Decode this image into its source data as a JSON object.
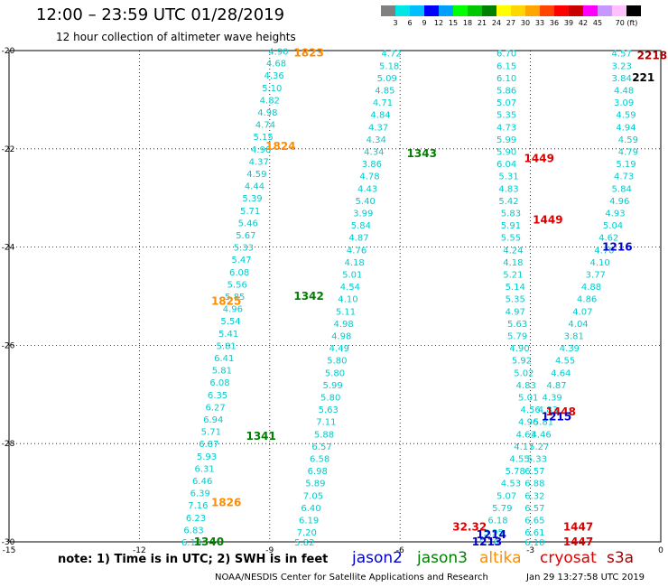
{
  "title": "12:00 – 23:59 UTC 01/28/2019",
  "subtitle": "12 hour collection of altimeter wave heights",
  "colorbar": {
    "colors": [
      "#808080",
      "#00e5e5",
      "#00bfff",
      "#0000ff",
      "#00a0ff",
      "#00ff00",
      "#00c800",
      "#008000",
      "#ffff00",
      "#ffd700",
      "#ffa500",
      "#ff4500",
      "#ff0000",
      "#c80000",
      "#ff00ff",
      "#c896ff",
      "#ffc0ff",
      "#000000"
    ],
    "labels": [
      "3",
      "6",
      "9",
      "12",
      "15",
      "18",
      "21",
      "24",
      "27",
      "30",
      "33",
      "36",
      "39",
      "42",
      "45",
      "70 (ft)"
    ]
  },
  "note": "note:  1) Time is in UTC;  2) SWH is in feet",
  "legend": [
    {
      "name": "jason2",
      "color": "#0000cc"
    },
    {
      "name": "jason3",
      "color": "#008000"
    },
    {
      "name": "altika",
      "color": "#ff8c00"
    },
    {
      "name": "cryosat",
      "color": "#dd0000"
    },
    {
      "name": "s3a",
      "color": "#aa0000"
    }
  ],
  "footer_org": "NOAA/NESDIS Center for Satellite Applications and Research",
  "footer_date": "Jan 29 13:27:58 UTC 2019",
  "chart_data": {
    "type": "scatter",
    "xlim": [
      -15,
      0
    ],
    "ylim": [
      -30,
      -20
    ],
    "xticks": [
      "-15",
      "-12",
      "-9",
      "-6",
      "-3",
      "0"
    ],
    "yticks": [
      "-20",
      "-22",
      "-24",
      "-26",
      "-28",
      "-30"
    ],
    "grid": true,
    "swh_color": "#00cccc",
    "swh_points": [
      {
        "x": -8.8,
        "y": -20.01,
        "t": "4.90"
      },
      {
        "x": -8.85,
        "y": -20.25,
        "t": "4.68"
      },
      {
        "x": -8.9,
        "y": -20.5,
        "t": "4.36"
      },
      {
        "x": -8.95,
        "y": -20.75,
        "t": "5.10"
      },
      {
        "x": -9.0,
        "y": -21.0,
        "t": "4.82"
      },
      {
        "x": -9.05,
        "y": -21.25,
        "t": "4.98"
      },
      {
        "x": -9.1,
        "y": -21.5,
        "t": "4.74"
      },
      {
        "x": -9.15,
        "y": -21.75,
        "t": "5.15"
      },
      {
        "x": -9.2,
        "y": -22.0,
        "t": "4.96"
      },
      {
        "x": -9.25,
        "y": -22.25,
        "t": "4.37"
      },
      {
        "x": -9.3,
        "y": -22.5,
        "t": "4.59"
      },
      {
        "x": -9.35,
        "y": -22.75,
        "t": "4.44"
      },
      {
        "x": -9.4,
        "y": -23.0,
        "t": "5.39"
      },
      {
        "x": -9.45,
        "y": -23.25,
        "t": "5.71"
      },
      {
        "x": -9.5,
        "y": -23.5,
        "t": "5.46"
      },
      {
        "x": -9.55,
        "y": -23.75,
        "t": "5.67"
      },
      {
        "x": -9.6,
        "y": -24.0,
        "t": "5.33"
      },
      {
        "x": -9.65,
        "y": -24.25,
        "t": "5.47"
      },
      {
        "x": -9.7,
        "y": -24.5,
        "t": "6.08"
      },
      {
        "x": -9.75,
        "y": -24.75,
        "t": "5.56"
      },
      {
        "x": -9.8,
        "y": -25.0,
        "t": "5.85"
      },
      {
        "x": -9.85,
        "y": -25.25,
        "t": "4.96"
      },
      {
        "x": -9.9,
        "y": -25.5,
        "t": "5.54"
      },
      {
        "x": -9.95,
        "y": -25.75,
        "t": "5.41"
      },
      {
        "x": -10.0,
        "y": -26.0,
        "t": "5.81"
      },
      {
        "x": -10.05,
        "y": -26.25,
        "t": "6.41"
      },
      {
        "x": -10.1,
        "y": -26.5,
        "t": "5.81"
      },
      {
        "x": -10.15,
        "y": -26.75,
        "t": "6.08"
      },
      {
        "x": -10.2,
        "y": -27.0,
        "t": "6.35"
      },
      {
        "x": -10.25,
        "y": -27.25,
        "t": "6.27"
      },
      {
        "x": -10.3,
        "y": -27.5,
        "t": "6.94"
      },
      {
        "x": -10.35,
        "y": -27.75,
        "t": "5.71"
      },
      {
        "x": -10.4,
        "y": -28.0,
        "t": "6.87"
      },
      {
        "x": -10.45,
        "y": -28.25,
        "t": "5.93"
      },
      {
        "x": -10.5,
        "y": -28.5,
        "t": "6.31"
      },
      {
        "x": -10.55,
        "y": -28.75,
        "t": "6.46"
      },
      {
        "x": -10.6,
        "y": -29.0,
        "t": "6.39"
      },
      {
        "x": -10.65,
        "y": -29.25,
        "t": "7.16"
      },
      {
        "x": -10.7,
        "y": -29.5,
        "t": "6.23"
      },
      {
        "x": -10.75,
        "y": -29.75,
        "t": "6.83"
      },
      {
        "x": -10.8,
        "y": -30.0,
        "t": "6.18"
      },
      {
        "x": -6.2,
        "y": -20.05,
        "t": "4.72"
      },
      {
        "x": -6.25,
        "y": -20.3,
        "t": "5.18"
      },
      {
        "x": -6.3,
        "y": -20.55,
        "t": "5.09"
      },
      {
        "x": -6.35,
        "y": -20.8,
        "t": "4.85"
      },
      {
        "x": -6.4,
        "y": -21.05,
        "t": "4.71"
      },
      {
        "x": -6.45,
        "y": -21.3,
        "t": "4.84"
      },
      {
        "x": -6.5,
        "y": -21.55,
        "t": "4.37"
      },
      {
        "x": -6.55,
        "y": -21.8,
        "t": "4.34"
      },
      {
        "x": -6.6,
        "y": -22.05,
        "t": "4.34"
      },
      {
        "x": -6.65,
        "y": -22.3,
        "t": "3.86"
      },
      {
        "x": -6.7,
        "y": -22.55,
        "t": "4.78"
      },
      {
        "x": -6.75,
        "y": -22.8,
        "t": "4.43"
      },
      {
        "x": -6.8,
        "y": -23.05,
        "t": "5.40"
      },
      {
        "x": -6.85,
        "y": -23.3,
        "t": "3.99"
      },
      {
        "x": -6.9,
        "y": -23.55,
        "t": "5.84"
      },
      {
        "x": -6.95,
        "y": -23.8,
        "t": "4.87"
      },
      {
        "x": -7.0,
        "y": -24.05,
        "t": "4.76"
      },
      {
        "x": -7.05,
        "y": -24.3,
        "t": "4.18"
      },
      {
        "x": -7.1,
        "y": -24.55,
        "t": "5.01"
      },
      {
        "x": -7.15,
        "y": -24.8,
        "t": "4.54"
      },
      {
        "x": -7.2,
        "y": -25.05,
        "t": "4.10"
      },
      {
        "x": -7.25,
        "y": -25.3,
        "t": "5.11"
      },
      {
        "x": -7.3,
        "y": -25.55,
        "t": "4.98"
      },
      {
        "x": -7.35,
        "y": -25.8,
        "t": "4.98"
      },
      {
        "x": -7.4,
        "y": -26.05,
        "t": "4.49"
      },
      {
        "x": -7.45,
        "y": -26.3,
        "t": "5.80"
      },
      {
        "x": -7.5,
        "y": -26.55,
        "t": "5.80"
      },
      {
        "x": -7.55,
        "y": -26.8,
        "t": "5.99"
      },
      {
        "x": -7.6,
        "y": -27.05,
        "t": "5.80"
      },
      {
        "x": -7.65,
        "y": -27.3,
        "t": "5.63"
      },
      {
        "x": -7.7,
        "y": -27.55,
        "t": "7.11"
      },
      {
        "x": -7.75,
        "y": -27.8,
        "t": "5.88"
      },
      {
        "x": -7.8,
        "y": -28.05,
        "t": "6.57"
      },
      {
        "x": -7.85,
        "y": -28.3,
        "t": "6.58"
      },
      {
        "x": -7.9,
        "y": -28.55,
        "t": "6.98"
      },
      {
        "x": -7.95,
        "y": -28.8,
        "t": "5.89"
      },
      {
        "x": -8.0,
        "y": -29.05,
        "t": "7.05"
      },
      {
        "x": -8.05,
        "y": -29.3,
        "t": "6.40"
      },
      {
        "x": -8.1,
        "y": -29.55,
        "t": "6.19"
      },
      {
        "x": -8.15,
        "y": -29.8,
        "t": "7.20"
      },
      {
        "x": -8.2,
        "y": -30.0,
        "t": "5.82"
      },
      {
        "x": -3.55,
        "y": -20.05,
        "t": "6.70"
      },
      {
        "x": -3.55,
        "y": -20.3,
        "t": "6.15"
      },
      {
        "x": -3.55,
        "y": -20.55,
        "t": "6.10"
      },
      {
        "x": -3.55,
        "y": -20.8,
        "t": "5.86"
      },
      {
        "x": -3.55,
        "y": -21.05,
        "t": "5.07"
      },
      {
        "x": -3.55,
        "y": -21.3,
        "t": "5.35"
      },
      {
        "x": -3.55,
        "y": -21.55,
        "t": "4.73"
      },
      {
        "x": -3.55,
        "y": -21.8,
        "t": "5.99"
      },
      {
        "x": -3.55,
        "y": -22.05,
        "t": "5.90"
      },
      {
        "x": -3.55,
        "y": -22.3,
        "t": "6.04"
      },
      {
        "x": -3.5,
        "y": -22.55,
        "t": "5.31"
      },
      {
        "x": -3.5,
        "y": -22.8,
        "t": "4.83"
      },
      {
        "x": -3.5,
        "y": -23.05,
        "t": "5.42"
      },
      {
        "x": -3.45,
        "y": -23.3,
        "t": "5.83"
      },
      {
        "x": -3.45,
        "y": -23.55,
        "t": "5.91"
      },
      {
        "x": -3.45,
        "y": -23.8,
        "t": "5.55"
      },
      {
        "x": -3.4,
        "y": -24.05,
        "t": "4.24"
      },
      {
        "x": -3.4,
        "y": -24.3,
        "t": "4.18"
      },
      {
        "x": -3.4,
        "y": -24.55,
        "t": "5.21"
      },
      {
        "x": -3.35,
        "y": -24.8,
        "t": "5.14"
      },
      {
        "x": -3.35,
        "y": -25.05,
        "t": "5.35"
      },
      {
        "x": -3.35,
        "y": -25.3,
        "t": "4.97"
      },
      {
        "x": -3.3,
        "y": -25.55,
        "t": "5.63"
      },
      {
        "x": -3.3,
        "y": -25.8,
        "t": "5.79"
      },
      {
        "x": -3.25,
        "y": -26.05,
        "t": "4.90"
      },
      {
        "x": -3.2,
        "y": -26.3,
        "t": "5.92"
      },
      {
        "x": -3.15,
        "y": -26.55,
        "t": "5.02"
      },
      {
        "x": -3.1,
        "y": -26.8,
        "t": "4.83"
      },
      {
        "x": -3.05,
        "y": -27.05,
        "t": "5.01"
      },
      {
        "x": -3.0,
        "y": -27.3,
        "t": "4.56"
      },
      {
        "x": -3.05,
        "y": -27.55,
        "t": "4.96"
      },
      {
        "x": -3.1,
        "y": -27.8,
        "t": "4.63"
      },
      {
        "x": -3.15,
        "y": -28.05,
        "t": "4.17"
      },
      {
        "x": -3.25,
        "y": -28.3,
        "t": "4.55"
      },
      {
        "x": -3.35,
        "y": -28.55,
        "t": "5.78"
      },
      {
        "x": -3.45,
        "y": -28.8,
        "t": "4.53"
      },
      {
        "x": -3.55,
        "y": -29.05,
        "t": "5.07"
      },
      {
        "x": -3.65,
        "y": -29.3,
        "t": "5.79"
      },
      {
        "x": -3.75,
        "y": -29.55,
        "t": "6.18"
      },
      {
        "x": -3.85,
        "y": -29.8,
        "t": "5.95"
      },
      {
        "x": -3.95,
        "y": -30.0,
        "t": "5.78"
      },
      {
        "x": -0.9,
        "y": -20.05,
        "t": "4.57"
      },
      {
        "x": -0.9,
        "y": -20.3,
        "t": "3.23"
      },
      {
        "x": -0.9,
        "y": -20.55,
        "t": "3.84"
      },
      {
        "x": -0.85,
        "y": -20.8,
        "t": "4.48"
      },
      {
        "x": -0.85,
        "y": -21.05,
        "t": "3.09"
      },
      {
        "x": -0.8,
        "y": -21.3,
        "t": "4.59"
      },
      {
        "x": -0.8,
        "y": -21.55,
        "t": "4.94"
      },
      {
        "x": -0.75,
        "y": -21.8,
        "t": "4.59"
      },
      {
        "x": -0.75,
        "y": -22.05,
        "t": "4.79"
      },
      {
        "x": -0.8,
        "y": -22.3,
        "t": "5.19"
      },
      {
        "x": -0.85,
        "y": -22.55,
        "t": "4.73"
      },
      {
        "x": -0.9,
        "y": -22.8,
        "t": "5.84"
      },
      {
        "x": -0.95,
        "y": -23.05,
        "t": "4.96"
      },
      {
        "x": -1.05,
        "y": -23.3,
        "t": "4.93"
      },
      {
        "x": -1.1,
        "y": -23.55,
        "t": "5.04"
      },
      {
        "x": -1.2,
        "y": -23.8,
        "t": "4.62"
      },
      {
        "x": -1.3,
        "y": -24.05,
        "t": "4.70"
      },
      {
        "x": -1.4,
        "y": -24.3,
        "t": "4.10"
      },
      {
        "x": -1.5,
        "y": -24.55,
        "t": "3.77"
      },
      {
        "x": -1.6,
        "y": -24.8,
        "t": "4.88"
      },
      {
        "x": -1.7,
        "y": -25.05,
        "t": "4.86"
      },
      {
        "x": -1.8,
        "y": -25.3,
        "t": "4.07"
      },
      {
        "x": -1.9,
        "y": -25.55,
        "t": "4.04"
      },
      {
        "x": -2.0,
        "y": -25.8,
        "t": "3.81"
      },
      {
        "x": -2.1,
        "y": -26.05,
        "t": "4.39"
      },
      {
        "x": -2.2,
        "y": -26.3,
        "t": "4.55"
      },
      {
        "x": -2.3,
        "y": -26.55,
        "t": "4.64"
      },
      {
        "x": -2.4,
        "y": -26.8,
        "t": "4.87"
      },
      {
        "x": -2.5,
        "y": -27.05,
        "t": "4.39"
      },
      {
        "x": -2.6,
        "y": -27.3,
        "t": "4.83"
      },
      {
        "x": -2.7,
        "y": -27.55,
        "t": "5.81"
      },
      {
        "x": -2.75,
        "y": -27.8,
        "t": "4.46"
      },
      {
        "x": -2.8,
        "y": -28.05,
        "t": "5.27"
      },
      {
        "x": -2.85,
        "y": -28.3,
        "t": "5.33"
      },
      {
        "x": -2.9,
        "y": -28.55,
        "t": "6.57"
      },
      {
        "x": -2.9,
        "y": -28.8,
        "t": "6.88"
      },
      {
        "x": -2.9,
        "y": -29.05,
        "t": "6.32"
      },
      {
        "x": -2.9,
        "y": -29.3,
        "t": "6.57"
      },
      {
        "x": -2.9,
        "y": -29.55,
        "t": "6.65"
      },
      {
        "x": -2.9,
        "y": -29.8,
        "t": "6.61"
      },
      {
        "x": -2.9,
        "y": -30.0,
        "t": "6.10"
      }
    ],
    "track_labels": [
      {
        "x": -8.1,
        "y": -20.05,
        "t": "1823",
        "c": "#ff8c00"
      },
      {
        "x": -8.75,
        "y": -21.95,
        "t": "1824",
        "c": "#ff8c00"
      },
      {
        "x": -10.0,
        "y": -25.1,
        "t": "1825",
        "c": "#ff8c00"
      },
      {
        "x": -10.0,
        "y": -29.2,
        "t": "1826",
        "c": "#ff8c00"
      },
      {
        "x": -5.5,
        "y": -22.1,
        "t": "1343",
        "c": "#008000"
      },
      {
        "x": -8.1,
        "y": -25.0,
        "t": "1342",
        "c": "#008000"
      },
      {
        "x": -9.2,
        "y": -27.85,
        "t": "1341",
        "c": "#008000"
      },
      {
        "x": -10.4,
        "y": -30.0,
        "t": "1340",
        "c": "#008000"
      },
      {
        "x": -2.8,
        "y": -22.2,
        "t": "1449",
        "c": "#dd0000"
      },
      {
        "x": -2.6,
        "y": -23.45,
        "t": "1449",
        "c": "#dd0000"
      },
      {
        "x": -2.3,
        "y": -27.35,
        "t": "1448",
        "c": "#dd0000"
      },
      {
        "x": -1.9,
        "y": -29.7,
        "t": "1447",
        "c": "#dd0000"
      },
      {
        "x": -1.9,
        "y": -30.0,
        "t": "1447",
        "c": "#dd0000"
      },
      {
        "x": -4.4,
        "y": -29.7,
        "t": "32.32",
        "c": "#dd0000"
      },
      {
        "x": -1.0,
        "y": -24.0,
        "t": "1216",
        "c": "#0000cc"
      },
      {
        "x": -2.4,
        "y": -27.45,
        "t": "1215",
        "c": "#0000cc"
      },
      {
        "x": -3.9,
        "y": -29.85,
        "t": "1214",
        "c": "#0000cc"
      },
      {
        "x": -4.0,
        "y": -30.0,
        "t": "1213",
        "c": "#0000cc"
      },
      {
        "x": -0.2,
        "y": -20.1,
        "t": "2218",
        "c": "#aa0000"
      },
      {
        "x": -0.4,
        "y": -20.55,
        "t": "221",
        "c": "#000000"
      }
    ]
  }
}
